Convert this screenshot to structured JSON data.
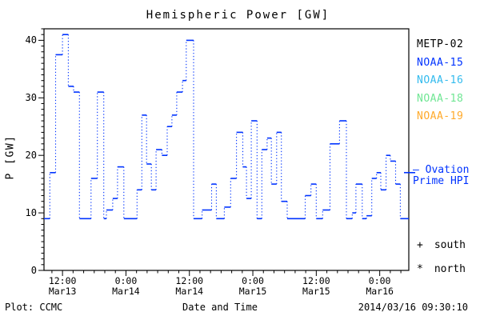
{
  "title": "Hemispheric Power [GW]",
  "colors": {
    "axis": "#000000",
    "background": "#ffffff",
    "series_blue": "#0033ff",
    "ovation": "#0033ff"
  },
  "yaxis": {
    "label": "P [GW]",
    "ticks": [
      "0",
      "10",
      "20",
      "30",
      "40"
    ]
  },
  "xaxis": {
    "label": "Date and Time",
    "ticks": [
      {
        "time": "12:00",
        "date": "Mar13"
      },
      {
        "time": "0:00",
        "date": "Mar14"
      },
      {
        "time": "12:00",
        "date": "Mar14"
      },
      {
        "time": "0:00",
        "date": "Mar15"
      },
      {
        "time": "12:00",
        "date": "Mar15"
      },
      {
        "time": "0:00",
        "date": "Mar16"
      }
    ]
  },
  "legend": {
    "satellites": [
      {
        "label": "METP-02",
        "color": "#000000"
      },
      {
        "label": "NOAA-15",
        "color": "#0033ff"
      },
      {
        "label": "NOAA-16",
        "color": "#33bbee"
      },
      {
        "label": "NOAA-18",
        "color": "#70e694"
      },
      {
        "label": "NOAA-19",
        "color": "#ffaa2b"
      }
    ],
    "ovation": {
      "line1": "– Ovation",
      "line2": "Prime HPI",
      "color": "#0033ff"
    },
    "markers": [
      {
        "symbol": "+",
        "label": "south"
      },
      {
        "symbol": "*",
        "label": "north"
      }
    ]
  },
  "footer": {
    "left": "Plot: CCMC",
    "right": "2014/03/16 09:30:10"
  },
  "chart_data": {
    "type": "line",
    "subtype": "step",
    "title": "Hemispheric Power [GW]",
    "xlabel": "Date and Time",
    "ylabel": "P [GW]",
    "x_unit": "hours since 2014-03-13 00:00 UT",
    "xlim": [
      8.5,
      77.5
    ],
    "ylim": [
      0,
      42
    ],
    "grid": false,
    "legend_position": "right",
    "x_major_ticks_hours": [
      12,
      24,
      36,
      48,
      60,
      72
    ],
    "x_major_tick_labels": [
      "12:00 Mar13",
      "0:00 Mar14",
      "12:00 Mar14",
      "0:00 Mar15",
      "12:00 Mar15",
      "0:00 Mar16"
    ],
    "x_minor_tick_step_hours": 2,
    "y_major_ticks": [
      0,
      10,
      20,
      30,
      40
    ],
    "y_minor_tick_step": 1,
    "ovation_prime_hpi_marker_gw": 17,
    "series": [
      {
        "name": "NOAA-15",
        "color": "#0033ff",
        "style": "solid horizontal step dashes with dotted vertical connectors",
        "points_hours_gw": [
          [
            8.5,
            9
          ],
          [
            9.6,
            17
          ],
          [
            10.7,
            37.5
          ],
          [
            12.0,
            41
          ],
          [
            13.1,
            32
          ],
          [
            14.1,
            31
          ],
          [
            15.2,
            9
          ],
          [
            17.4,
            16
          ],
          [
            18.6,
            31
          ],
          [
            19.8,
            9
          ],
          [
            20.3,
            10.5
          ],
          [
            21.5,
            12.5
          ],
          [
            22.4,
            18
          ],
          [
            23.6,
            9
          ],
          [
            26.1,
            14
          ],
          [
            27.0,
            27
          ],
          [
            27.9,
            18.5
          ],
          [
            28.8,
            14
          ],
          [
            29.7,
            21
          ],
          [
            30.8,
            20
          ],
          [
            31.8,
            25
          ],
          [
            32.7,
            27
          ],
          [
            33.6,
            31
          ],
          [
            34.7,
            33
          ],
          [
            35.4,
            40
          ],
          [
            36.8,
            9
          ],
          [
            38.4,
            10.5
          ],
          [
            40.2,
            15
          ],
          [
            41.1,
            9
          ],
          [
            42.6,
            11
          ],
          [
            43.8,
            16
          ],
          [
            44.9,
            24
          ],
          [
            46.1,
            18
          ],
          [
            46.8,
            12.5
          ],
          [
            47.7,
            26
          ],
          [
            48.8,
            9
          ],
          [
            49.7,
            21
          ],
          [
            50.7,
            23
          ],
          [
            51.5,
            15
          ],
          [
            52.5,
            24
          ],
          [
            53.4,
            12
          ],
          [
            54.5,
            9
          ],
          [
            57.9,
            13
          ],
          [
            59.0,
            15
          ],
          [
            60.0,
            9
          ],
          [
            61.2,
            10.5
          ],
          [
            62.6,
            22
          ],
          [
            64.4,
            26
          ],
          [
            65.7,
            9
          ],
          [
            66.8,
            10
          ],
          [
            67.5,
            15
          ],
          [
            68.7,
            9
          ],
          [
            69.5,
            9.5
          ],
          [
            70.5,
            16
          ],
          [
            71.4,
            17
          ],
          [
            72.2,
            14
          ],
          [
            73.2,
            20
          ],
          [
            74.0,
            19
          ],
          [
            75.0,
            15
          ],
          [
            75.9,
            9
          ]
        ]
      }
    ]
  }
}
